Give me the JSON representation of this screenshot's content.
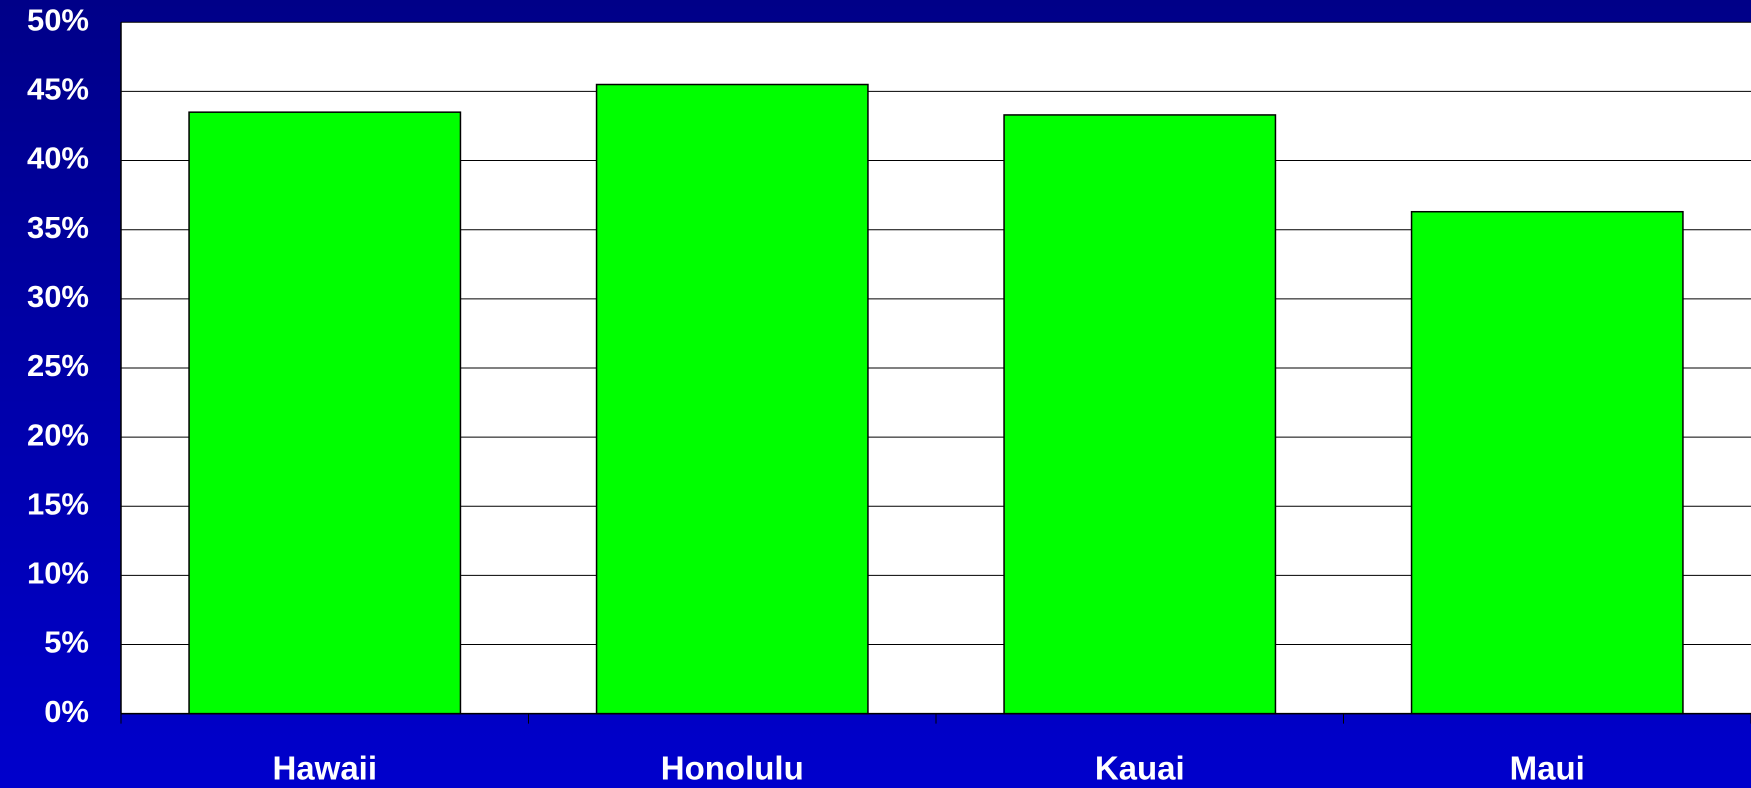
{
  "chart_data": {
    "type": "bar",
    "categories": [
      "Hawaii",
      "Honolulu",
      "Kauai",
      "Maui"
    ],
    "values": [
      43.5,
      45.5,
      43.3,
      36.3
    ],
    "color": "#00ff00",
    "ylim": [
      0,
      50
    ],
    "yticks": [
      {
        "value": 0,
        "label": "0%"
      },
      {
        "value": 5,
        "label": "5%"
      },
      {
        "value": 10,
        "label": "10%"
      },
      {
        "value": 15,
        "label": "15%"
      },
      {
        "value": 20,
        "label": "20%"
      },
      {
        "value": 25,
        "label": "25%"
      },
      {
        "value": 30,
        "label": "30%"
      },
      {
        "value": 35,
        "label": "35%"
      },
      {
        "value": 40,
        "label": "40%"
      },
      {
        "value": 45,
        "label": "45%"
      },
      {
        "value": 50,
        "label": "50%"
      }
    ],
    "grid": true
  }
}
